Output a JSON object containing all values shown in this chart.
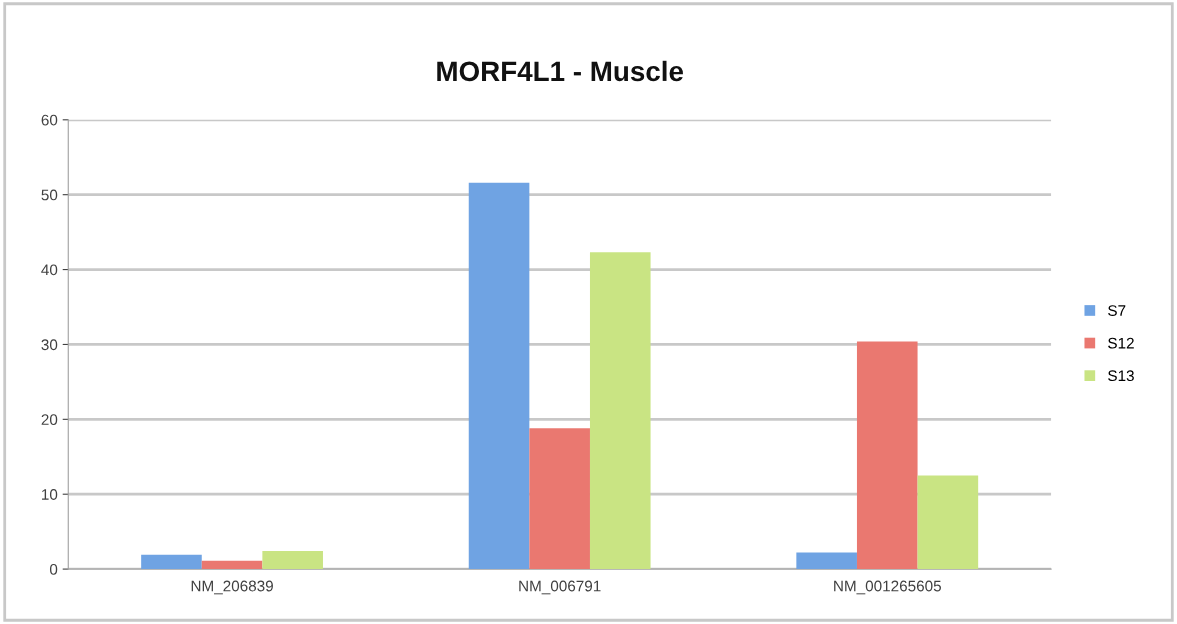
{
  "chart_data": {
    "type": "bar",
    "title": "MORF4L1 - Muscle",
    "categories": [
      "NM_206839",
      "NM_006791",
      "NM_001265605"
    ],
    "series": [
      {
        "name": "S7",
        "color": "#6fa3e3",
        "values": [
          1.9,
          51.6,
          2.2
        ]
      },
      {
        "name": "S12",
        "color": "#ea7870",
        "values": [
          1.1,
          18.8,
          30.4
        ]
      },
      {
        "name": "S13",
        "color": "#c9e483",
        "values": [
          2.4,
          42.3,
          12.5
        ]
      }
    ],
    "ylim": [
      0,
      60
    ],
    "yticks": [
      0,
      10,
      20,
      30,
      40,
      50,
      60
    ],
    "grid": "y",
    "legend": "right"
  }
}
